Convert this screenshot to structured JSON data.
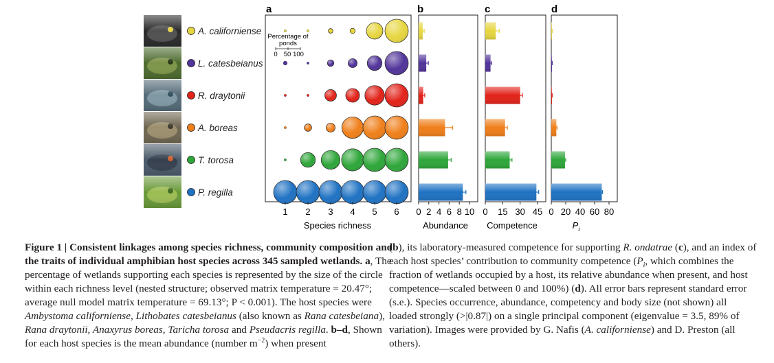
{
  "panels": [
    "a",
    "b",
    "c",
    "d"
  ],
  "species": [
    {
      "name": "A. californiense",
      "color": "#e6d640"
    },
    {
      "name": "L. catesbeianus",
      "color": "#51349a"
    },
    {
      "name": "R. draytonii",
      "color": "#e2231a"
    },
    {
      "name": "A. boreas",
      "color": "#ef7f1a"
    },
    {
      "name": "T. torosa",
      "color": "#2ea639"
    },
    {
      "name": "P. regilla",
      "color": "#1f72c3"
    }
  ],
  "legend": {
    "line1": "Percentage of",
    "line2": "ponds",
    "ticks": [
      "0",
      "50",
      "100"
    ]
  },
  "chart_data": [
    {
      "panel": "a",
      "type": "scatter",
      "xlabel": "Species richness",
      "x": [
        1,
        2,
        3,
        4,
        5,
        6
      ],
      "series": [
        {
          "name": "A. californiense",
          "values": [
            1,
            1,
            4,
            5,
            50,
            100
          ]
        },
        {
          "name": "L. catesbeianus",
          "values": [
            3,
            1,
            8,
            15,
            40,
            100
          ]
        },
        {
          "name": "R. draytonii",
          "values": [
            1,
            1,
            25,
            35,
            70,
            100
          ]
        },
        {
          "name": "A. boreas",
          "values": [
            1,
            10,
            15,
            85,
            100,
            100
          ]
        },
        {
          "name": "T. torosa",
          "values": [
            1,
            40,
            65,
            90,
            100,
            100
          ]
        },
        {
          "name": "P. regilla",
          "values": [
            100,
            100,
            100,
            100,
            100,
            100
          ]
        }
      ]
    },
    {
      "panel": "b",
      "type": "bar",
      "xlabel": "Abundance",
      "xlim": [
        0,
        10
      ],
      "ticks": [
        "0",
        "2",
        "4",
        "6",
        "8",
        "10"
      ],
      "values": [
        0.8,
        1.5,
        0.9,
        5.2,
        5.8,
        8.7
      ],
      "errors": [
        0.3,
        0.4,
        0.3,
        1.5,
        0.6,
        0.6
      ]
    },
    {
      "panel": "c",
      "type": "bar",
      "xlabel": "Competence",
      "xlim": [
        0,
        45
      ],
      "ticks": [
        "0",
        "15",
        "30",
        "45"
      ],
      "values": [
        9,
        4.5,
        30,
        17,
        21,
        44
      ],
      "errors": [
        3,
        1,
        2,
        2,
        2,
        2
      ]
    },
    {
      "panel": "d",
      "type": "bar",
      "xlabel": "P",
      "xlabel_sub": "i",
      "xlim": [
        0,
        80
      ],
      "ticks": [
        "0",
        "20",
        "40",
        "60",
        "80"
      ],
      "values": [
        1,
        1,
        1,
        7,
        19,
        70
      ],
      "errors": [
        0.3,
        0.3,
        0.3,
        1,
        1,
        1
      ]
    }
  ],
  "caption": {
    "left": {
      "fig_label": "Figure 1 | ",
      "fig_title": "Consistent linkages among species richness, community composition and the traits of individual amphibian host species across 345 sampled wetlands.",
      "a_label": "a",
      "a_text": ", The percentage of wetlands supporting each species is represented by the size of the circle within each richness level (nested structure; observed matrix temperature = 20.47°; average null model matrix temperature = 69.13°; P < 0.001). The host species were ",
      "sp1": "Ambystoma californiense, Lithobates catesbeianus",
      "t1": " (also known as ",
      "sp2": "Rana catesbeiana",
      "t2": "), ",
      "sp3": "Rana draytonii, Anaxyrus boreas, Taricha torosa",
      "t3": " and ",
      "sp4": "Pseudacris regilla",
      "t4": ". ",
      "bd_label": "b–d",
      "t5": ", Shown for each host species is the mean abundance (number m",
      "sup": "−2",
      "t6": ") when present"
    },
    "right": {
      "t1": "(",
      "b1": "b",
      "t2": "), its laboratory-measured competence for supporting ",
      "sp1": "R. ondatrae",
      "t3": " (",
      "b2": "c",
      "t4": "), and an index of each host species’ contribution to community competence (",
      "pi": "P",
      "pi_sub": "i",
      "t5": ", which combines the fraction of wetlands occupied by a host, its relative abundance when present, and host competence—scaled between 0 and 100%) (",
      "b3": "d",
      "t6": "). All error bars represent standard error (s.e.). Species occurrence, abundance, competency and body size (not shown) all loaded strongly (>|0.87|) on a single principal component (eigenvalue = 3.5, 89% of variation). Images were provided by G. Nafis (",
      "sp2": "A. californiense",
      "t7": ") and D. Preston (all others)."
    }
  }
}
